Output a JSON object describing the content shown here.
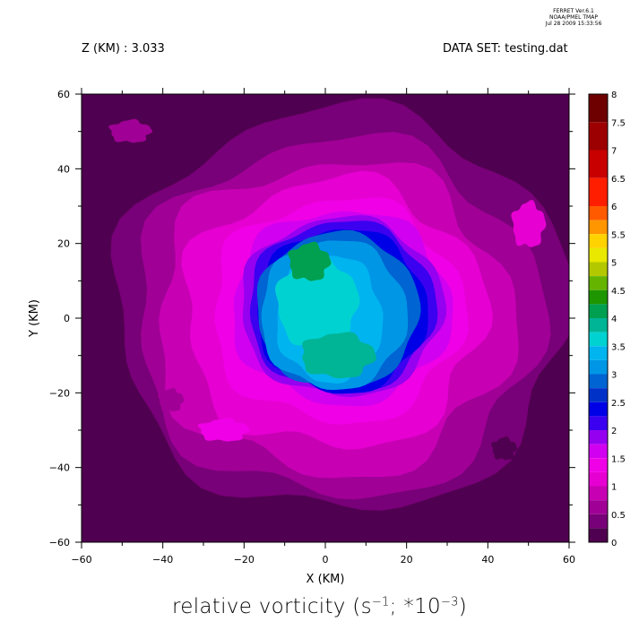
{
  "header": {
    "program": "FERRET Ver.6.1",
    "org": "NOAA/PMEL TMAP",
    "datetime": "Jul 28 2009 15:33:56",
    "zlabel": "Z (KM) : 3.033",
    "dataset": "DATA SET: testing.dat"
  },
  "chart_data": {
    "type": "heatmap",
    "title_prefix": "relative vorticity (s",
    "title_exp1": "−1",
    "title_mid": "; *10",
    "title_exp2": "−3",
    "title_suffix": ")",
    "xlabel": "X (KM)",
    "ylabel": "Y (KM)",
    "xlim": [
      -60,
      60
    ],
    "ylim": [
      -60,
      60
    ],
    "xticks": [
      "−60",
      "−40",
      "−20",
      "0",
      "20",
      "40",
      "60"
    ],
    "yticks": [
      "−60",
      "−40",
      "−20",
      "0",
      "20",
      "40",
      "60"
    ],
    "colorbar": {
      "levels": [
        "8",
        "7.5",
        "7",
        "6.5",
        "6",
        "5.5",
        "5",
        "4.5",
        "4",
        "3.5",
        "3",
        "2.5",
        "2",
        "1.5",
        "1",
        "0.5",
        "0"
      ],
      "colors": [
        "#6e0000",
        "#9c0000",
        "#c80000",
        "#ff1e00",
        "#ff5a00",
        "#ff9600",
        "#ffd200",
        "#e8e800",
        "#b4c800",
        "#64b400",
        "#1e9600",
        "#00a050",
        "#00b496",
        "#00d2d2",
        "#00b4f0",
        "#0096e6",
        "#0064d2",
        "#0032c8",
        "#0000e6",
        "#3c00f0",
        "#9600f0",
        "#d200f0",
        "#f000e6",
        "#e600d2",
        "#c800b4",
        "#a00096",
        "#780078",
        "#500050"
      ],
      "boundaries": [
        0,
        0.25,
        0.5,
        0.75,
        1,
        1.25,
        1.5,
        1.75,
        2,
        2.25,
        2.5,
        2.75,
        3,
        3.25,
        3.5,
        3.75,
        4,
        4.25,
        4.5,
        4.75,
        5,
        5.25,
        5.5,
        5.75,
        6,
        6.5,
        7,
        7.5,
        8
      ]
    }
  }
}
